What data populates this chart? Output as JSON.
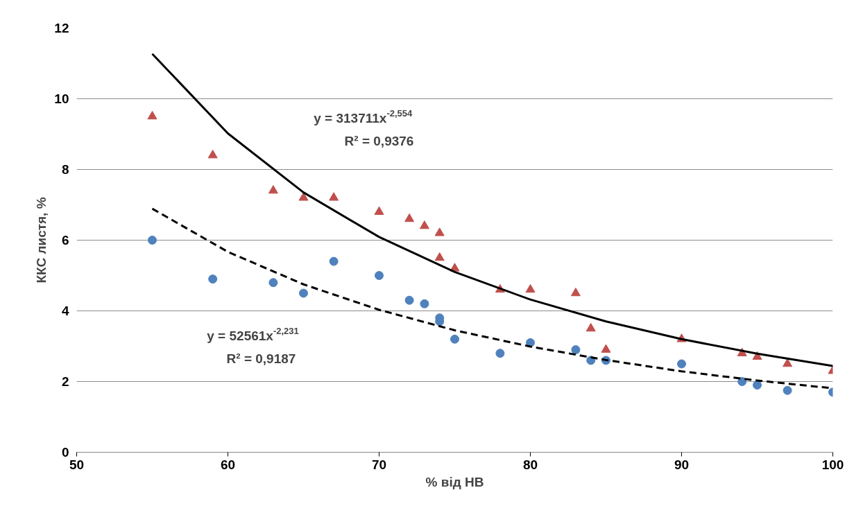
{
  "chart_data": {
    "type": "scatter",
    "xlabel": "% від НВ",
    "ylabel": "ККС листя, %",
    "xlim": [
      50,
      100
    ],
    "ylim": [
      0,
      12
    ],
    "xticks": [
      50,
      60,
      70,
      80,
      90,
      100
    ],
    "yticks": [
      0,
      2,
      4,
      6,
      8,
      10,
      12
    ],
    "grid": "y",
    "series": [
      {
        "marker": "triangle",
        "color": "#c0504d",
        "x": [
          55,
          59,
          63,
          65,
          67,
          70,
          72,
          73,
          74,
          74,
          75,
          78,
          80,
          83,
          84,
          85,
          90,
          94,
          95,
          97,
          100
        ],
        "values": [
          9.5,
          8.4,
          7.4,
          7.2,
          7.2,
          6.8,
          6.6,
          6.4,
          6.2,
          5.5,
          5.2,
          4.6,
          4.6,
          4.5,
          3.5,
          2.9,
          3.2,
          2.8,
          2.7,
          2.5,
          2.3
        ]
      },
      {
        "marker": "circle",
        "color": "#4f81bd",
        "x": [
          55,
          59,
          63,
          65,
          67,
          70,
          72,
          73,
          74,
          74,
          75,
          78,
          80,
          83,
          84,
          85,
          90,
          94,
          95,
          97,
          100
        ],
        "values": [
          6.0,
          4.9,
          4.8,
          4.5,
          5.4,
          5.0,
          4.3,
          4.2,
          3.8,
          3.7,
          3.2,
          2.8,
          3.1,
          2.9,
          2.6,
          2.6,
          2.5,
          2.0,
          1.9,
          1.75,
          1.7
        ]
      },
      {
        "type": "line",
        "line_style": "solid",
        "color": "#000000",
        "x": [
          55,
          60,
          65,
          70,
          75,
          80,
          85,
          90,
          95,
          100
        ],
        "values": [
          11.27,
          9.02,
          7.35,
          6.09,
          5.1,
          4.32,
          3.7,
          3.2,
          2.79,
          2.44
        ]
      },
      {
        "type": "line",
        "line_style": "dashed",
        "color": "#000000",
        "x": [
          55,
          60,
          65,
          70,
          75,
          80,
          85,
          90,
          95,
          100
        ],
        "values": [
          6.89,
          5.67,
          4.75,
          4.03,
          3.45,
          2.99,
          2.61,
          2.29,
          2.03,
          1.81
        ]
      }
    ],
    "annotations": [
      "y = 313711x$^{-2,554}$",
      "R² = 0,9376",
      "y = 52561x$^{-2,231}$",
      "R² = 0,9187"
    ]
  }
}
